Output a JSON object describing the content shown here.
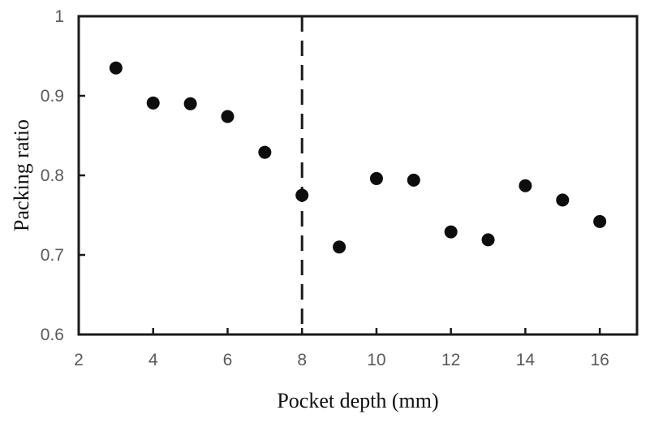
{
  "chart_data": {
    "type": "scatter",
    "title": "",
    "xlabel": "Pocket depth (mm)",
    "ylabel": "Packing ratio",
    "x": [
      3,
      4,
      5,
      6,
      7,
      8,
      9,
      10,
      11,
      12,
      13,
      14,
      15,
      16
    ],
    "y": [
      0.935,
      0.891,
      0.89,
      0.874,
      0.829,
      0.775,
      0.71,
      0.796,
      0.794,
      0.729,
      0.719,
      0.787,
      0.769,
      0.742
    ],
    "xlim": [
      2,
      17
    ],
    "ylim": [
      0.6,
      1.0
    ],
    "xticks": [
      2,
      4,
      6,
      8,
      10,
      12,
      14,
      16
    ],
    "xtick_labels": [
      "2",
      "4",
      "6",
      "8",
      "10",
      "12",
      "14",
      "16"
    ],
    "yticks": [
      1.0,
      0.9,
      0.8,
      0.7,
      0.6
    ],
    "ytick_labels": [
      "1",
      "0.9",
      "0.8",
      "0.7",
      "0.6"
    ],
    "annotations": [
      {
        "type": "vline",
        "x": 8,
        "style": "dashed"
      }
    ],
    "grid": false,
    "legend": "none",
    "marker_color": "#0d0d0d",
    "axis_color": "#1a1a1a",
    "tick_label_color": "#5a5a5a"
  }
}
